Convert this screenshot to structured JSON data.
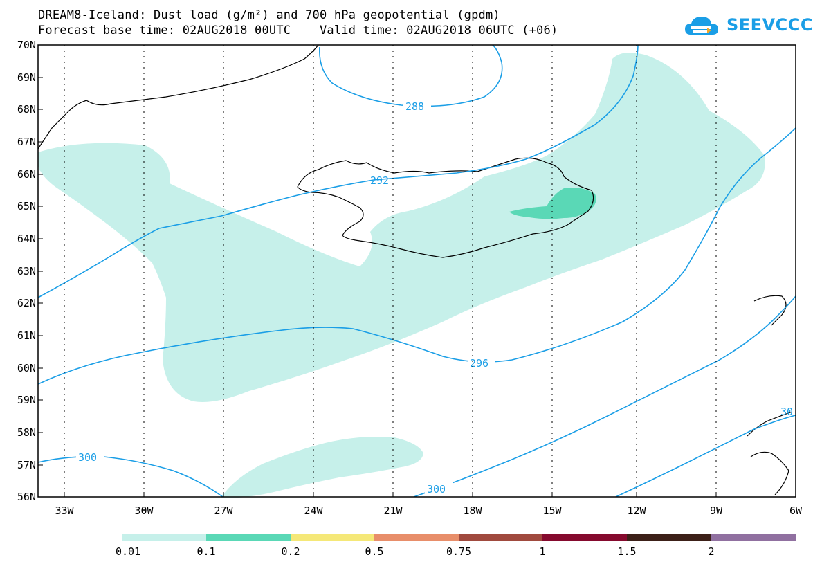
{
  "header": {
    "title_line1": "DREAM8-Iceland: Dust load (g/m²) and 700 hPa geopotential (gpdm)",
    "title_line2": "Forecast base time: 02AUG2018 00UTC    Valid time: 02AUG2018 06UTC (+06)"
  },
  "logo": {
    "text": "SEEVCCC",
    "icon": "cloud-logo-icon",
    "color": "#1a9ee6"
  },
  "map": {
    "lat_labels": [
      "70N",
      "69N",
      "68N",
      "67N",
      "66N",
      "65N",
      "64N",
      "63N",
      "62N",
      "61N",
      "60N",
      "59N",
      "58N",
      "57N",
      "56N"
    ],
    "lon_labels": [
      "33W",
      "30W",
      "27W",
      "24W",
      "21W",
      "18W",
      "15W",
      "12W",
      "9W",
      "6W"
    ],
    "contour_labels": [
      "288",
      "292",
      "296",
      "300",
      "300",
      "30"
    ],
    "contour_color": "#1a9ee6",
    "dust_colors": {
      "low": "#c6f0ea",
      "mid": "#5ad8b6"
    }
  },
  "legend": {
    "labels": [
      "0.01",
      "0.1",
      "0.2",
      "0.5",
      "0.75",
      "1",
      "1.5",
      "2"
    ],
    "colors": [
      "#c6f0ea",
      "#5ad8b6",
      "#f5e878",
      "#e88e6a",
      "#a04a3e",
      "#850a2e",
      "#3c2018",
      "#9070a0"
    ]
  }
}
